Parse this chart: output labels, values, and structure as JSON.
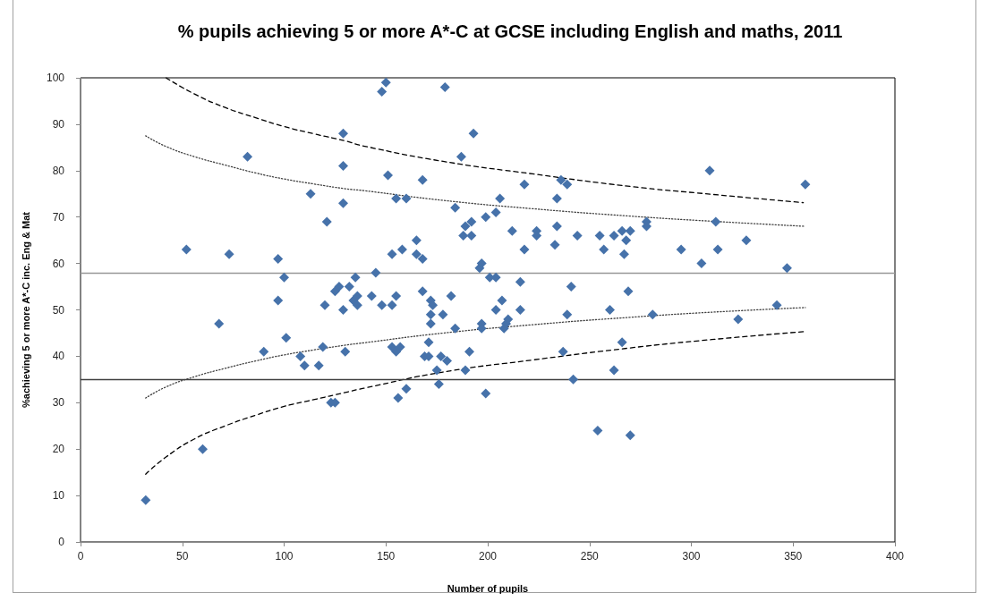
{
  "chart_data": {
    "type": "scatter",
    "title": "% pupils achieving 5 or more A*-C at GCSE including English and maths, 2011",
    "xlabel": "Number of pupils",
    "ylabel": "%achieving 5 or more A*-C inc. Eng & Mat",
    "xlim": [
      0,
      400
    ],
    "xticks": [
      0,
      50,
      100,
      150,
      200,
      250,
      300,
      350,
      400
    ],
    "ylim": [
      0,
      100
    ],
    "yticks": [
      0,
      10,
      20,
      30,
      40,
      50,
      60,
      70,
      80,
      90,
      100
    ],
    "marker": "diamond",
    "series": [
      {
        "color": "#4672aa",
        "x": [
          32,
          52,
          60,
          68,
          73,
          82,
          90,
          97,
          97,
          100,
          101,
          108,
          110,
          113,
          117,
          119,
          120,
          121,
          123,
          125,
          125,
          127,
          129,
          129,
          129,
          129,
          130,
          132,
          134,
          135,
          136,
          136,
          143,
          145,
          148,
          148,
          150,
          151,
          153,
          153,
          153,
          155,
          155,
          155,
          156,
          157,
          158,
          160,
          160,
          165,
          165,
          168,
          168,
          168,
          169,
          171,
          171,
          172,
          173,
          172,
          172,
          175,
          176,
          177,
          178,
          179,
          180,
          182,
          184,
          184,
          187,
          188,
          189,
          189,
          191,
          192,
          192,
          193,
          196,
          197,
          197,
          197,
          199,
          199,
          201,
          204,
          204,
          204,
          206,
          207,
          208,
          209,
          210,
          212,
          216,
          216,
          218,
          218,
          224,
          224,
          233,
          234,
          234,
          236,
          237,
          239,
          239,
          241,
          242,
          244,
          254,
          255,
          257,
          260,
          262,
          262,
          266,
          266,
          267,
          268,
          269,
          270,
          270,
          278,
          278,
          281,
          295,
          305,
          309,
          312,
          313,
          323,
          327,
          342,
          347,
          356
        ],
        "values": [
          9,
          63,
          20,
          47,
          62,
          83,
          41,
          61,
          52,
          57,
          44,
          40,
          38,
          75,
          38,
          42,
          51,
          69,
          30,
          30,
          54,
          55,
          88,
          81,
          73,
          50,
          41,
          55,
          52,
          57,
          53,
          51,
          53,
          58,
          97,
          51,
          99,
          79,
          62,
          51,
          42,
          74,
          53,
          41,
          31,
          42,
          63,
          74,
          33,
          65,
          62,
          78,
          61,
          54,
          40,
          43,
          40,
          52,
          51,
          49,
          47,
          37,
          34,
          40,
          49,
          98,
          39,
          53,
          72,
          46,
          83,
          66,
          68,
          37,
          41,
          69,
          66,
          88,
          59,
          60,
          47,
          46,
          70,
          32,
          57,
          71,
          57,
          50,
          74,
          52,
          46,
          47,
          48,
          67,
          56,
          50,
          77,
          63,
          67,
          66,
          64,
          74,
          68,
          78,
          41,
          77,
          49,
          55,
          35,
          66,
          24,
          66,
          63,
          50,
          66,
          37,
          67,
          43,
          62,
          65,
          54,
          67,
          23,
          69,
          68,
          49,
          63,
          60,
          80,
          69,
          63,
          48,
          65,
          51,
          59,
          77
        ]
      },
      {
        "type": "line",
        "color": "#000000",
        "line_style": "dashed",
        "marker": "none",
        "x": [
          42,
          56,
          71,
          86,
          100,
          115,
          130,
          139,
          178,
          222,
          270,
          310,
          355
        ],
        "values": [
          100,
          96.5,
          93.6,
          91.4,
          89.5,
          87.9,
          86.4,
          85.3,
          82.0,
          79.3,
          76.6,
          74.9,
          73.1
        ]
      },
      {
        "type": "line",
        "color": "#000000",
        "line_style": "dashed",
        "marker": "none",
        "x": [
          32,
          42,
          56,
          71,
          86,
          100,
          115,
          130,
          139,
          178,
          222,
          270,
          310,
          355
        ],
        "values": [
          14.6,
          18.3,
          22.2,
          25.0,
          27.3,
          29.2,
          30.7,
          32.2,
          33.1,
          36.6,
          39.2,
          41.8,
          43.6,
          45.3
        ]
      },
      {
        "type": "line",
        "color": "#404040",
        "line_style": "dotted",
        "marker": "none",
        "x": [
          32,
          42,
          56,
          71,
          86,
          100,
          115,
          130,
          139,
          178,
          222,
          270,
          310,
          356
        ],
        "values": [
          87.5,
          85.2,
          83.0,
          81.2,
          79.5,
          78.2,
          77.1,
          76.1,
          75.7,
          73.6,
          71.8,
          70.2,
          69.1,
          68.0
        ]
      },
      {
        "type": "line",
        "color": "#404040",
        "line_style": "dotted",
        "marker": "none",
        "x": [
          32,
          42,
          56,
          71,
          86,
          100,
          115,
          130,
          139,
          178,
          222,
          270,
          310,
          356
        ],
        "values": [
          31.0,
          33.4,
          35.6,
          37.4,
          39.0,
          40.3,
          41.4,
          42.4,
          42.9,
          45.0,
          46.8,
          48.4,
          49.5,
          50.5
        ]
      }
    ],
    "ref_lines": [
      {
        "axis": "y",
        "value": 58,
        "color": "#969696"
      },
      {
        "axis": "y",
        "value": 35,
        "color": "#404040"
      }
    ]
  }
}
